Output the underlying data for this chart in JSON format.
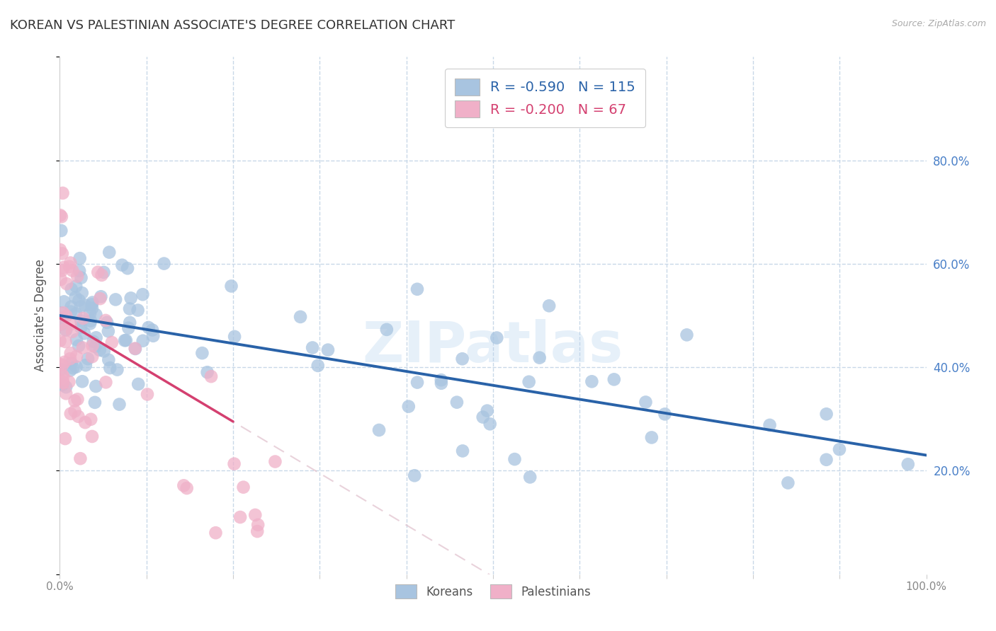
{
  "title": "KOREAN VS PALESTINIAN ASSOCIATE'S DEGREE CORRELATION CHART",
  "source": "Source: ZipAtlas.com",
  "ylabel": "Associate's Degree",
  "watermark": "ZIPatlas",
  "xlim": [
    0.0,
    1.0
  ],
  "ylim": [
    0.0,
    1.0
  ],
  "korean_R": -0.59,
  "korean_N": 115,
  "palestinian_R": -0.2,
  "palestinian_N": 67,
  "korean_color": "#a8c4e0",
  "korean_line_color": "#2962a8",
  "palestinian_color": "#f0b0c8",
  "palestinian_line_color": "#d44070",
  "palestinian_trendline_color": "#e0c0cc",
  "background_color": "#ffffff",
  "grid_color": "#c8d8e8",
  "grid_linestyle": "--",
  "ytick_color": "#4a80c8",
  "tick_label_color": "#888888",
  "title_color": "#333333",
  "ylabel_color": "#555555",
  "legend_text_colors": [
    "#2962a8",
    "#d44070"
  ],
  "korean_intercept": 0.5,
  "korean_slope": -0.27,
  "pal_intercept": 0.49,
  "pal_slope": -1.6,
  "pal_dash_intercept": 0.49,
  "pal_dash_slope": -1.6
}
